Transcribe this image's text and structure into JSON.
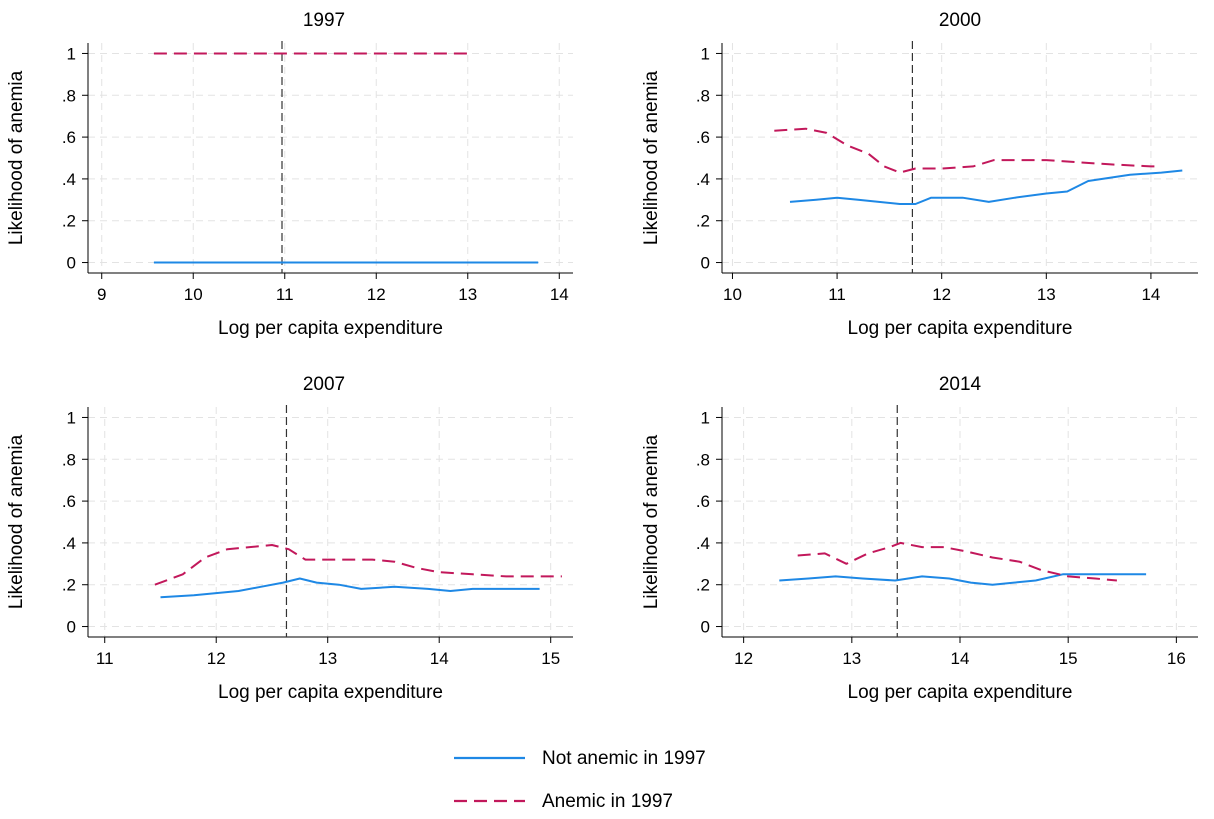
{
  "figure": {
    "legend": [
      {
        "label": "Not anemic in 1997",
        "color": "#1e88e5",
        "style": "solid"
      },
      {
        "label": "Anemic in 1997",
        "color": "#c2185b",
        "style": "dashed"
      }
    ]
  },
  "chart_data": [
    {
      "type": "line",
      "title": "1997",
      "xlabel": "Log per capita expenditure",
      "ylabel": "Likelihood of anemia",
      "xlim": [
        8.85,
        14.15
      ],
      "ylim": [
        -0.05,
        1.05
      ],
      "xticks": [
        9,
        10,
        11,
        12,
        13,
        14
      ],
      "yticks": [
        0,
        0.2,
        0.4,
        0.6,
        0.8,
        1
      ],
      "ytick_labels": [
        "0",
        ".2",
        ".4",
        ".6",
        ".8",
        "1"
      ],
      "grid": true,
      "vline": 10.97,
      "series": [
        {
          "name": "Not anemic in 1997",
          "points": [
            [
              9.57,
              0.0
            ],
            [
              13.77,
              0.0
            ]
          ]
        },
        {
          "name": "Anemic in 1997",
          "points": [
            [
              9.57,
              1.0
            ],
            [
              13.02,
              1.0
            ]
          ]
        }
      ]
    },
    {
      "type": "line",
      "title": "2000",
      "xlabel": "Log per capita expenditure",
      "ylabel": "Likelihood of anemia",
      "xlim": [
        9.9,
        14.45
      ],
      "ylim": [
        -0.05,
        1.05
      ],
      "xticks": [
        10,
        11,
        12,
        13,
        14
      ],
      "yticks": [
        0,
        0.2,
        0.4,
        0.6,
        0.8,
        1
      ],
      "ytick_labels": [
        "0",
        ".2",
        ".4",
        ".6",
        ".8",
        "1"
      ],
      "grid": true,
      "vline": 11.72,
      "series": [
        {
          "name": "Not anemic in 1997",
          "points": [
            [
              10.55,
              0.29
            ],
            [
              10.8,
              0.3
            ],
            [
              11.0,
              0.31
            ],
            [
              11.2,
              0.3
            ],
            [
              11.4,
              0.29
            ],
            [
              11.6,
              0.28
            ],
            [
              11.75,
              0.28
            ],
            [
              11.9,
              0.31
            ],
            [
              12.2,
              0.31
            ],
            [
              12.45,
              0.29
            ],
            [
              12.7,
              0.31
            ],
            [
              13.0,
              0.33
            ],
            [
              13.2,
              0.34
            ],
            [
              13.4,
              0.39
            ],
            [
              13.8,
              0.42
            ],
            [
              14.1,
              0.43
            ],
            [
              14.3,
              0.44
            ]
          ]
        },
        {
          "name": "Anemic in 1997",
          "points": [
            [
              10.4,
              0.63
            ],
            [
              10.7,
              0.64
            ],
            [
              10.9,
              0.62
            ],
            [
              11.1,
              0.56
            ],
            [
              11.3,
              0.52
            ],
            [
              11.45,
              0.46
            ],
            [
              11.6,
              0.43
            ],
            [
              11.75,
              0.45
            ],
            [
              12.0,
              0.45
            ],
            [
              12.3,
              0.46
            ],
            [
              12.5,
              0.49
            ],
            [
              12.8,
              0.49
            ],
            [
              13.0,
              0.49
            ],
            [
              13.3,
              0.48
            ],
            [
              13.6,
              0.47
            ],
            [
              14.0,
              0.46
            ],
            [
              14.1,
              0.46
            ]
          ]
        }
      ]
    },
    {
      "type": "line",
      "title": "2007",
      "xlabel": "Log per capita expenditure",
      "ylabel": "Likelihood of anemia",
      "xlim": [
        10.85,
        15.2
      ],
      "ylim": [
        -0.05,
        1.05
      ],
      "xticks": [
        11,
        12,
        13,
        14,
        15
      ],
      "yticks": [
        0,
        0.2,
        0.4,
        0.6,
        0.8,
        1
      ],
      "ytick_labels": [
        "0",
        ".2",
        ".4",
        ".6",
        ".8",
        "1"
      ],
      "grid": true,
      "vline": 12.63,
      "series": [
        {
          "name": "Not anemic in 1997",
          "points": [
            [
              11.5,
              0.14
            ],
            [
              11.8,
              0.15
            ],
            [
              12.0,
              0.16
            ],
            [
              12.2,
              0.17
            ],
            [
              12.4,
              0.19
            ],
            [
              12.6,
              0.21
            ],
            [
              12.75,
              0.23
            ],
            [
              12.9,
              0.21
            ],
            [
              13.1,
              0.2
            ],
            [
              13.3,
              0.18
            ],
            [
              13.6,
              0.19
            ],
            [
              13.9,
              0.18
            ],
            [
              14.1,
              0.17
            ],
            [
              14.3,
              0.18
            ],
            [
              14.6,
              0.18
            ],
            [
              14.9,
              0.18
            ]
          ]
        },
        {
          "name": "Anemic in 1997",
          "points": [
            [
              11.45,
              0.2
            ],
            [
              11.7,
              0.25
            ],
            [
              11.9,
              0.33
            ],
            [
              12.1,
              0.37
            ],
            [
              12.3,
              0.38
            ],
            [
              12.5,
              0.39
            ],
            [
              12.65,
              0.37
            ],
            [
              12.8,
              0.32
            ],
            [
              13.0,
              0.32
            ],
            [
              13.2,
              0.32
            ],
            [
              13.4,
              0.32
            ],
            [
              13.6,
              0.31
            ],
            [
              13.8,
              0.28
            ],
            [
              14.0,
              0.26
            ],
            [
              14.3,
              0.25
            ],
            [
              14.6,
              0.24
            ],
            [
              15.1,
              0.24
            ]
          ]
        }
      ]
    },
    {
      "type": "line",
      "title": "2014",
      "xlabel": "Log per capita expenditure",
      "ylabel": "Likelihood of anemia",
      "xlim": [
        11.8,
        16.2
      ],
      "ylim": [
        -0.05,
        1.05
      ],
      "xticks": [
        12,
        13,
        14,
        15,
        16
      ],
      "yticks": [
        0,
        0.2,
        0.4,
        0.6,
        0.8,
        1
      ],
      "ytick_labels": [
        "0",
        ".2",
        ".4",
        ".6",
        ".8",
        "1"
      ],
      "grid": true,
      "vline": 13.42,
      "series": [
        {
          "name": "Not anemic in 1997",
          "points": [
            [
              12.33,
              0.22
            ],
            [
              12.6,
              0.23
            ],
            [
              12.85,
              0.24
            ],
            [
              13.1,
              0.23
            ],
            [
              13.4,
              0.22
            ],
            [
              13.65,
              0.24
            ],
            [
              13.9,
              0.23
            ],
            [
              14.1,
              0.21
            ],
            [
              14.3,
              0.2
            ],
            [
              14.5,
              0.21
            ],
            [
              14.7,
              0.22
            ],
            [
              14.95,
              0.25
            ],
            [
              15.3,
              0.25
            ],
            [
              15.72,
              0.25
            ]
          ]
        },
        {
          "name": "Anemic in 1997",
          "points": [
            [
              12.5,
              0.34
            ],
            [
              12.75,
              0.35
            ],
            [
              12.95,
              0.3
            ],
            [
              13.15,
              0.35
            ],
            [
              13.35,
              0.38
            ],
            [
              13.45,
              0.4
            ],
            [
              13.65,
              0.38
            ],
            [
              13.85,
              0.38
            ],
            [
              14.05,
              0.36
            ],
            [
              14.3,
              0.33
            ],
            [
              14.55,
              0.31
            ],
            [
              14.75,
              0.27
            ],
            [
              15.0,
              0.24
            ],
            [
              15.25,
              0.23
            ],
            [
              15.45,
              0.22
            ]
          ]
        }
      ]
    }
  ]
}
